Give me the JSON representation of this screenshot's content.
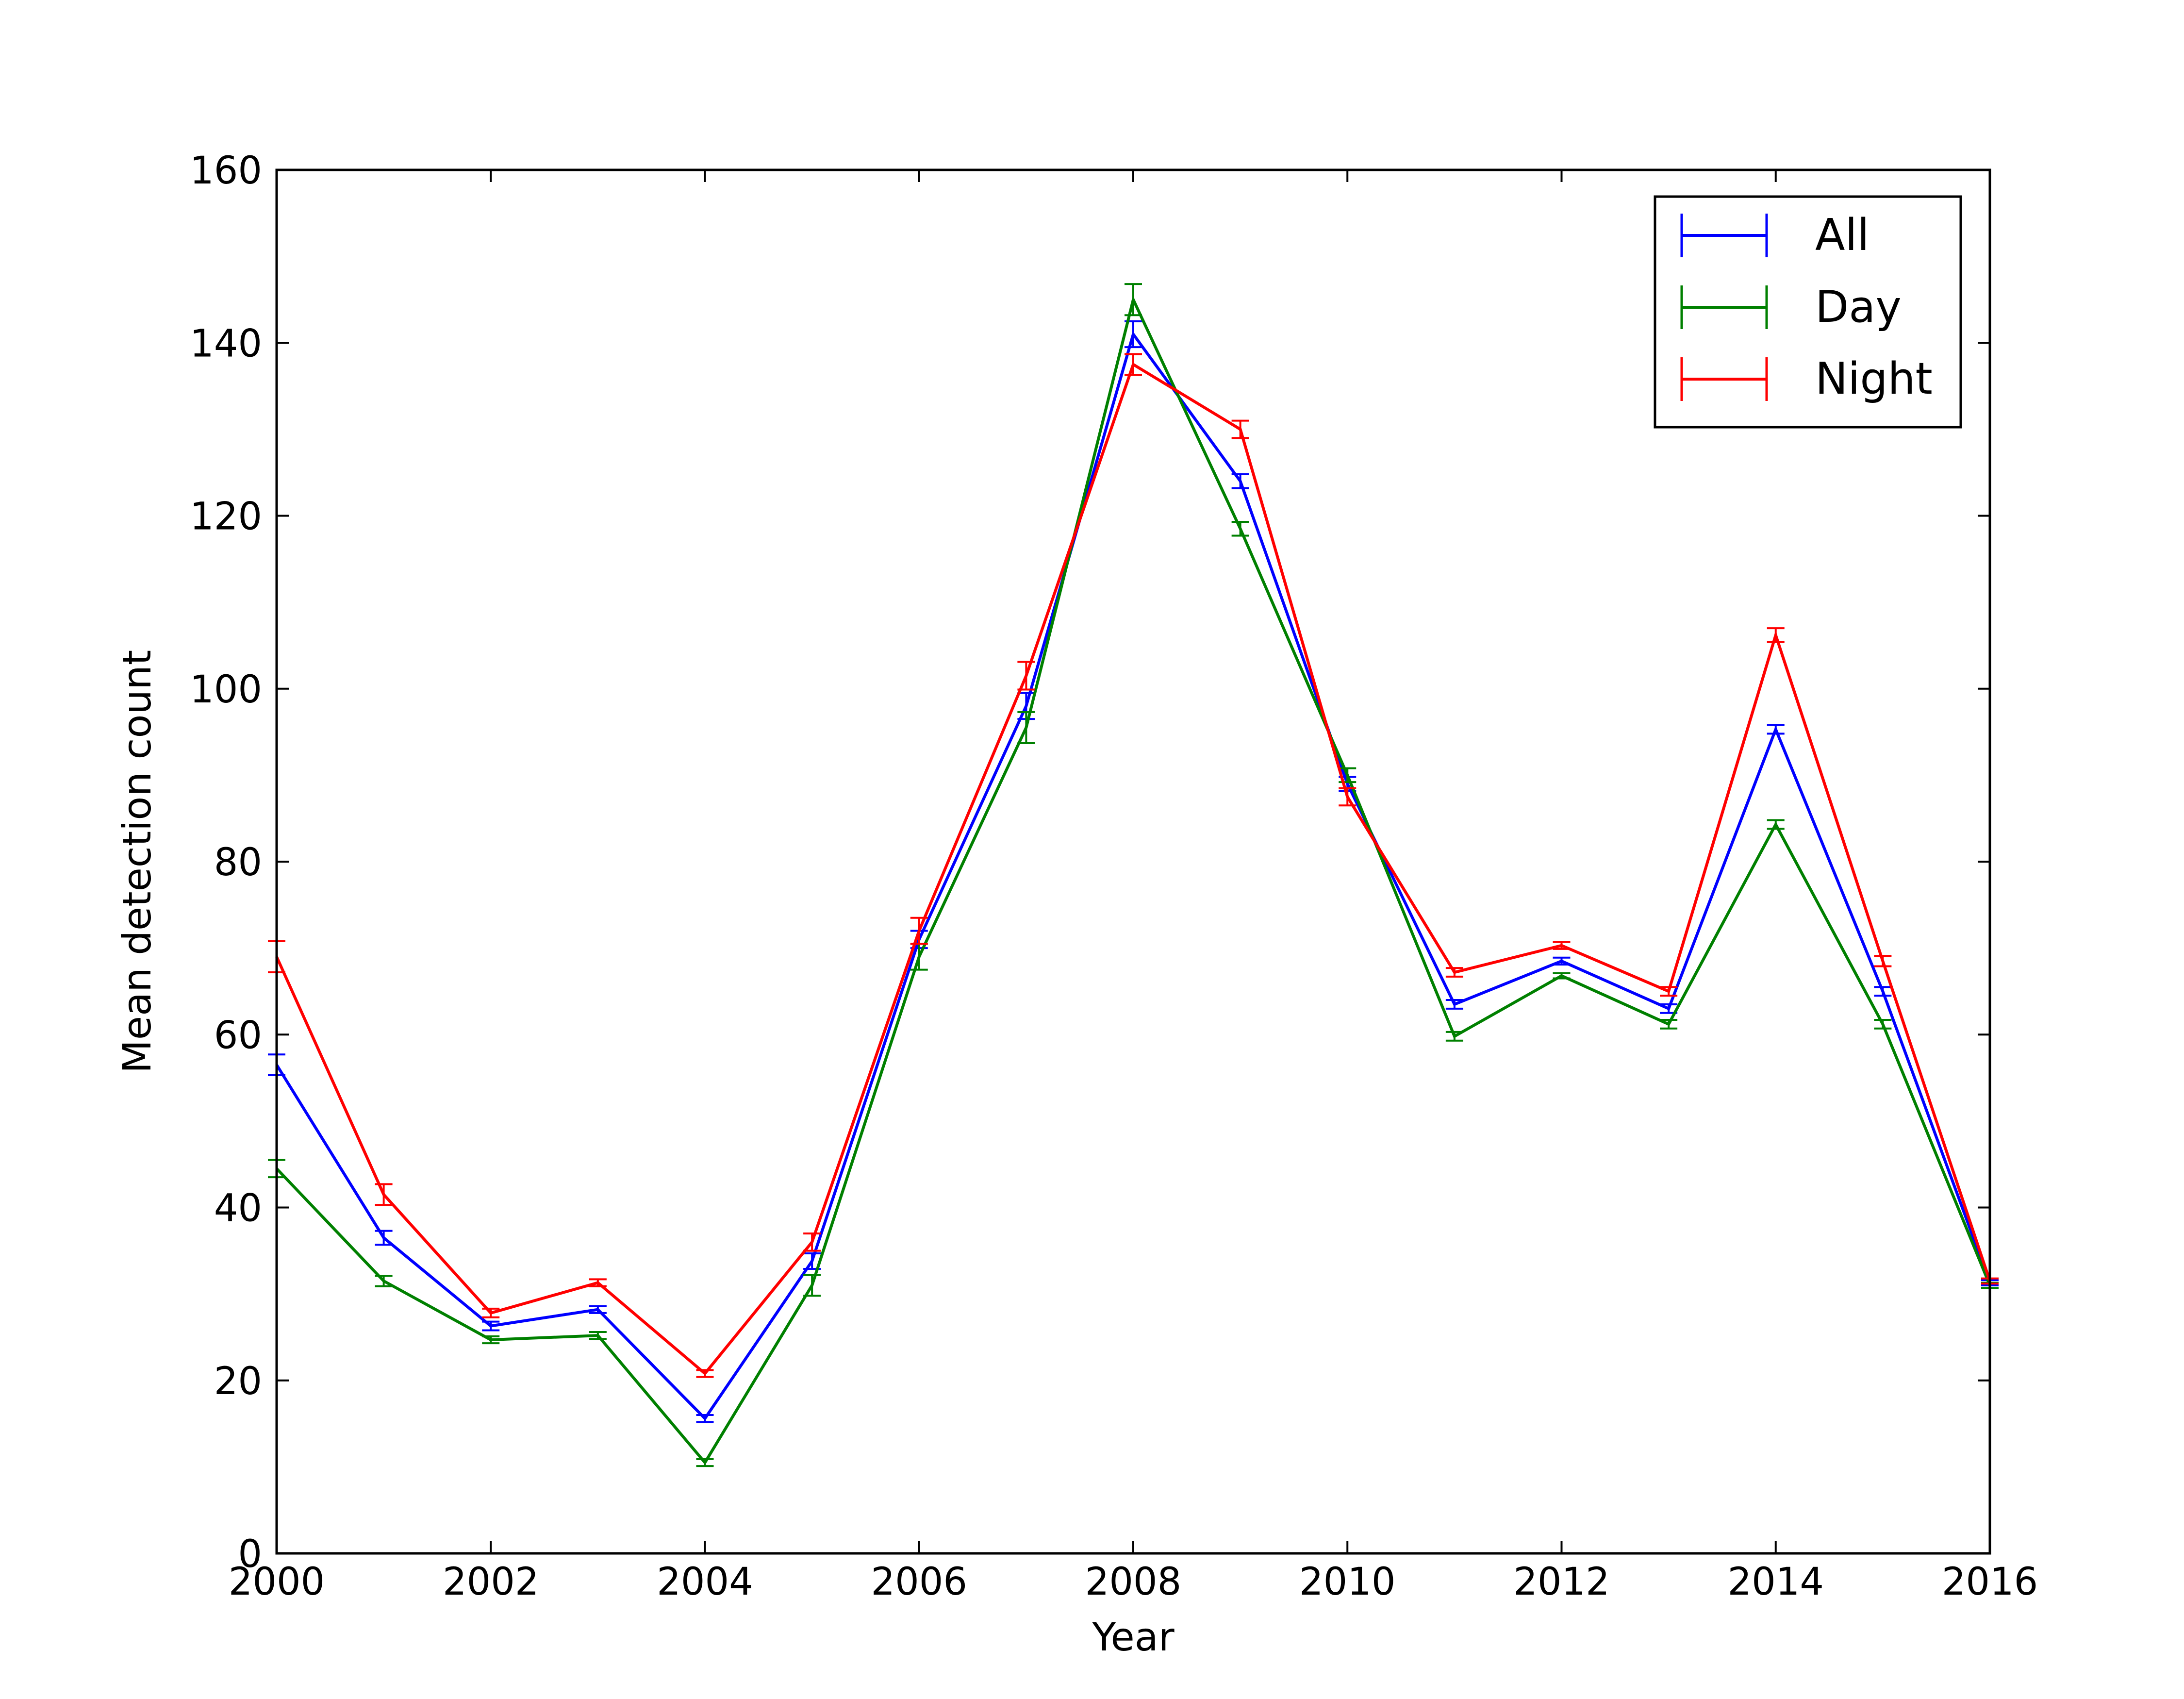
{
  "chart_data": {
    "type": "line",
    "title": "",
    "xlabel": "Year",
    "ylabel": "Mean detection count",
    "xlim": [
      2000,
      2016
    ],
    "ylim": [
      0,
      160
    ],
    "xticks": [
      2000,
      2002,
      2004,
      2006,
      2008,
      2010,
      2012,
      2014,
      2016
    ],
    "yticks": [
      0,
      20,
      40,
      60,
      80,
      100,
      120,
      140,
      160
    ],
    "x": [
      2000,
      2001,
      2002,
      2003,
      2004,
      2005,
      2006,
      2007,
      2008,
      2009,
      2010,
      2011,
      2012,
      2013,
      2014,
      2015,
      2016
    ],
    "legend_position": "upper right",
    "error_bars": true,
    "grid": false,
    "series": [
      {
        "name": "All",
        "color": "#0000ff",
        "values": [
          56.5,
          36.5,
          26.3,
          28.2,
          15.6,
          33.8,
          71.0,
          98.0,
          141.0,
          124.0,
          89.0,
          63.5,
          68.5,
          63.0,
          95.3,
          65.0,
          31.3
        ],
        "errors": [
          1.2,
          0.8,
          0.5,
          0.4,
          0.4,
          0.9,
          1.0,
          1.5,
          1.5,
          0.8,
          0.8,
          0.5,
          0.4,
          0.5,
          0.5,
          0.5,
          0.3
        ]
      },
      {
        "name": "Day",
        "color": "#008000",
        "values": [
          44.5,
          31.5,
          24.7,
          25.2,
          10.5,
          31.0,
          69.0,
          95.5,
          145.0,
          118.5,
          90.0,
          59.8,
          66.8,
          61.2,
          84.3,
          61.2,
          31.0
        ],
        "errors": [
          1.0,
          0.6,
          0.4,
          0.4,
          0.4,
          1.2,
          1.5,
          1.8,
          1.8,
          0.8,
          0.8,
          0.5,
          0.3,
          0.5,
          0.5,
          0.5,
          0.3
        ]
      },
      {
        "name": "Night",
        "color": "#ff0000",
        "values": [
          69.0,
          41.5,
          27.8,
          31.3,
          20.8,
          36.0,
          72.0,
          101.5,
          137.5,
          130.0,
          87.5,
          67.2,
          70.3,
          65.0,
          106.2,
          68.5,
          31.5
        ],
        "errors": [
          1.8,
          1.2,
          0.5,
          0.4,
          0.4,
          1.0,
          1.5,
          1.6,
          1.2,
          1.0,
          1.0,
          0.5,
          0.4,
          0.5,
          0.8,
          0.6,
          0.3
        ]
      }
    ]
  }
}
